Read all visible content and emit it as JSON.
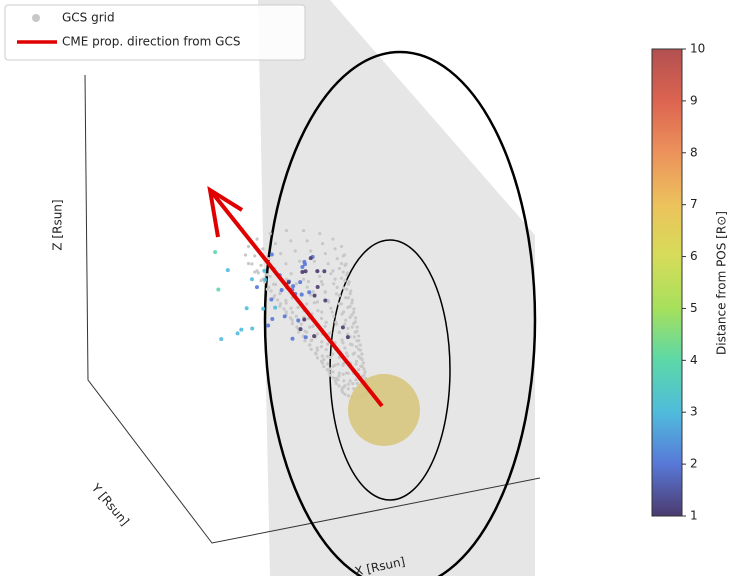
{
  "chart_data": {
    "type": "scatter3d",
    "series": [
      {
        "name": "GCS grid",
        "color": "#c8c8c8"
      },
      {
        "name": "CME prop. direction from GCS",
        "color": "#e00000"
      }
    ],
    "xlabel": "X [Rsun]",
    "ylabel": "Y [Rsun]",
    "zlabel": "Z [Rsun]",
    "colorbar": {
      "label": "Distance from POS [R⊙]",
      "lim": [
        1,
        10
      ],
      "ticks": [
        1,
        2,
        3,
        4,
        5,
        6,
        7,
        8,
        9,
        10
      ],
      "colors": [
        "#4b3b6e",
        "#5878d8",
        "#4fbcdc",
        "#5cd8a8",
        "#a6e05c",
        "#d6dc5a",
        "#ecc25c",
        "#ec925c",
        "#dc6450",
        "#b25050"
      ]
    },
    "points": [
      1.1,
      1.2,
      1.3,
      1.2,
      1.4,
      1.5,
      1.6,
      1.3,
      1.8,
      1.9,
      2.0,
      2.1,
      1.7,
      2.2,
      2.3,
      2.4,
      1.5,
      2.5,
      2.6,
      1.2,
      1.8,
      2.7,
      2.8,
      1.1,
      2.0,
      2.9,
      3.0,
      1.4,
      2.2,
      3.2,
      3.4,
      1.6,
      2.4,
      3.6,
      1.3,
      1.9,
      2.1,
      1.0,
      1.2,
      2.6,
      3.8,
      1.5,
      1.7,
      2.3,
      1.1,
      1.4,
      2.0,
      3.1,
      2.8,
      1.6
    ]
  }
}
